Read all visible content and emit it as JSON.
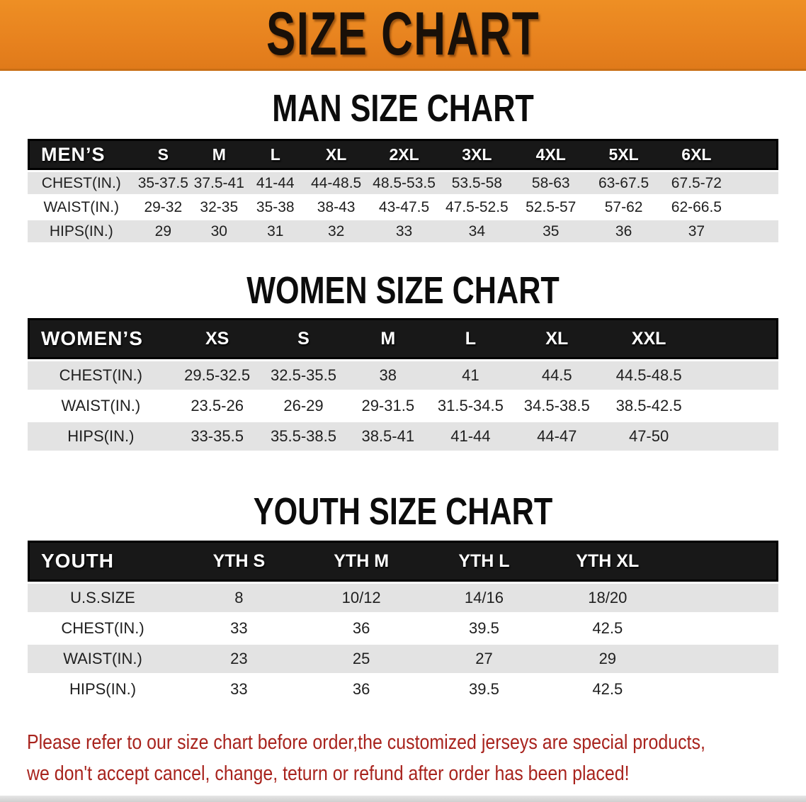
{
  "banner": {
    "title": "SIZE CHART"
  },
  "colors": {
    "banner_orange": "#E8831F",
    "header_black": "#181818",
    "row_grey": "#E3E3E3",
    "footer_red": "#A8231D"
  },
  "sections": [
    {
      "heading": "MAN SIZE CHART",
      "group_label": "MEN’S",
      "columns": [
        "S",
        "M",
        "L",
        "XL",
        "2XL",
        "3XL",
        "4XL",
        "5XL",
        "6XL"
      ],
      "rows": [
        {
          "label": "CHEST(IN.)",
          "values": [
            "35-37.5",
            "37.5-41",
            "41-44",
            "44-48.5",
            "48.5-53.5",
            "53.5-58",
            "58-63",
            "63-67.5",
            "67.5-72"
          ]
        },
        {
          "label": "WAIST(IN.)",
          "values": [
            "29-32",
            "32-35",
            "35-38",
            "38-43",
            "43-47.5",
            "47.5-52.5",
            "52.5-57",
            "57-62",
            "62-66.5"
          ]
        },
        {
          "label": "HIPS(IN.)",
          "values": [
            "29",
            "30",
            "31",
            "32",
            "33",
            "34",
            "35",
            "36",
            "37"
          ]
        }
      ]
    },
    {
      "heading": "WOMEN SIZE CHART",
      "group_label": "WOMEN’S",
      "columns": [
        "XS",
        "S",
        "M",
        "L",
        "XL",
        "XXL"
      ],
      "rows": [
        {
          "label": "CHEST(IN.)",
          "values": [
            "29.5-32.5",
            "32.5-35.5",
            "38",
            "41",
            "44.5",
            "44.5-48.5"
          ]
        },
        {
          "label": "WAIST(IN.)",
          "values": [
            "23.5-26",
            "26-29",
            "29-31.5",
            "31.5-34.5",
            "34.5-38.5",
            "38.5-42.5"
          ]
        },
        {
          "label": "HIPS(IN.)",
          "values": [
            "33-35.5",
            "35.5-38.5",
            "38.5-41",
            "41-44",
            "44-47",
            "47-50"
          ]
        }
      ]
    },
    {
      "heading": "YOUTH SIZE CHART",
      "group_label": "YOUTH",
      "columns": [
        "YTH S",
        "YTH M",
        "YTH L",
        "YTH XL"
      ],
      "rows": [
        {
          "label": "U.S.SIZE",
          "values": [
            "8",
            "10/12",
            "14/16",
            "18/20"
          ]
        },
        {
          "label": "CHEST(IN.)",
          "values": [
            "33",
            "36",
            "39.5",
            "42.5"
          ]
        },
        {
          "label": "WAIST(IN.)",
          "values": [
            "23",
            "25",
            "27",
            "29"
          ]
        },
        {
          "label": "HIPS(IN.)",
          "values": [
            "33",
            "36",
            "39.5",
            "42.5"
          ]
        }
      ]
    }
  ],
  "footer": {
    "line1": "Please refer to our size chart before order,the customized jerseys are special products,",
    "line2": "we don't accept cancel, change, teturn or refund after order has been placed!"
  }
}
